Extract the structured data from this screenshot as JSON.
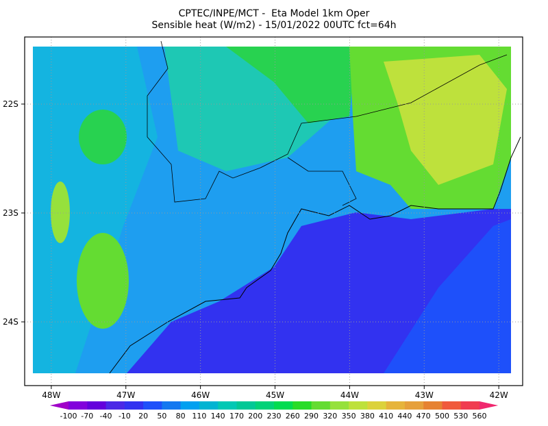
{
  "map": {
    "title_line1": "CPTEC/INPE/MCT -  Eta Model 1km Oper",
    "title_line2": "Sensible heat (W/m2) - 15/01/2022 00UTC fct=64h",
    "lon_range": [
      -48.357,
      -41.68
    ],
    "lat_range": [
      -21.384,
      -24.585
    ],
    "lon_ticks": [
      {
        "value": -48,
        "label": "48W"
      },
      {
        "value": -47,
        "label": "47W"
      },
      {
        "value": -46,
        "label": "46W"
      },
      {
        "value": -45,
        "label": "45W"
      },
      {
        "value": -44,
        "label": "44W"
      },
      {
        "value": -43,
        "label": "43W"
      },
      {
        "value": -42,
        "label": "42W"
      }
    ],
    "lat_ticks": [
      {
        "value": -22,
        "label": "22S"
      },
      {
        "value": -23,
        "label": "23S"
      },
      {
        "value": -24,
        "label": "24S"
      }
    ],
    "grid": true,
    "colorbar": {
      "levels": [
        -100,
        -70,
        -40,
        -10,
        20,
        50,
        80,
        110,
        140,
        170,
        200,
        230,
        260,
        290,
        320,
        350,
        380,
        410,
        440,
        470,
        500,
        530,
        560
      ],
      "colors": [
        "#a000c8",
        "#8200dc",
        "#6400dc",
        "#4b28e6",
        "#3232f0",
        "#1e50fa",
        "#1478f0",
        "#00a0f0",
        "#00b4d2",
        "#00c8b4",
        "#00c896",
        "#00d278",
        "#00dc50",
        "#28dc28",
        "#64dc32",
        "#96e13c",
        "#bee13c",
        "#dcd23c",
        "#e6b43c",
        "#e6a03c",
        "#e68232",
        "#f05a3c",
        "#f03c50",
        "#f0286e"
      ]
    }
  }
}
